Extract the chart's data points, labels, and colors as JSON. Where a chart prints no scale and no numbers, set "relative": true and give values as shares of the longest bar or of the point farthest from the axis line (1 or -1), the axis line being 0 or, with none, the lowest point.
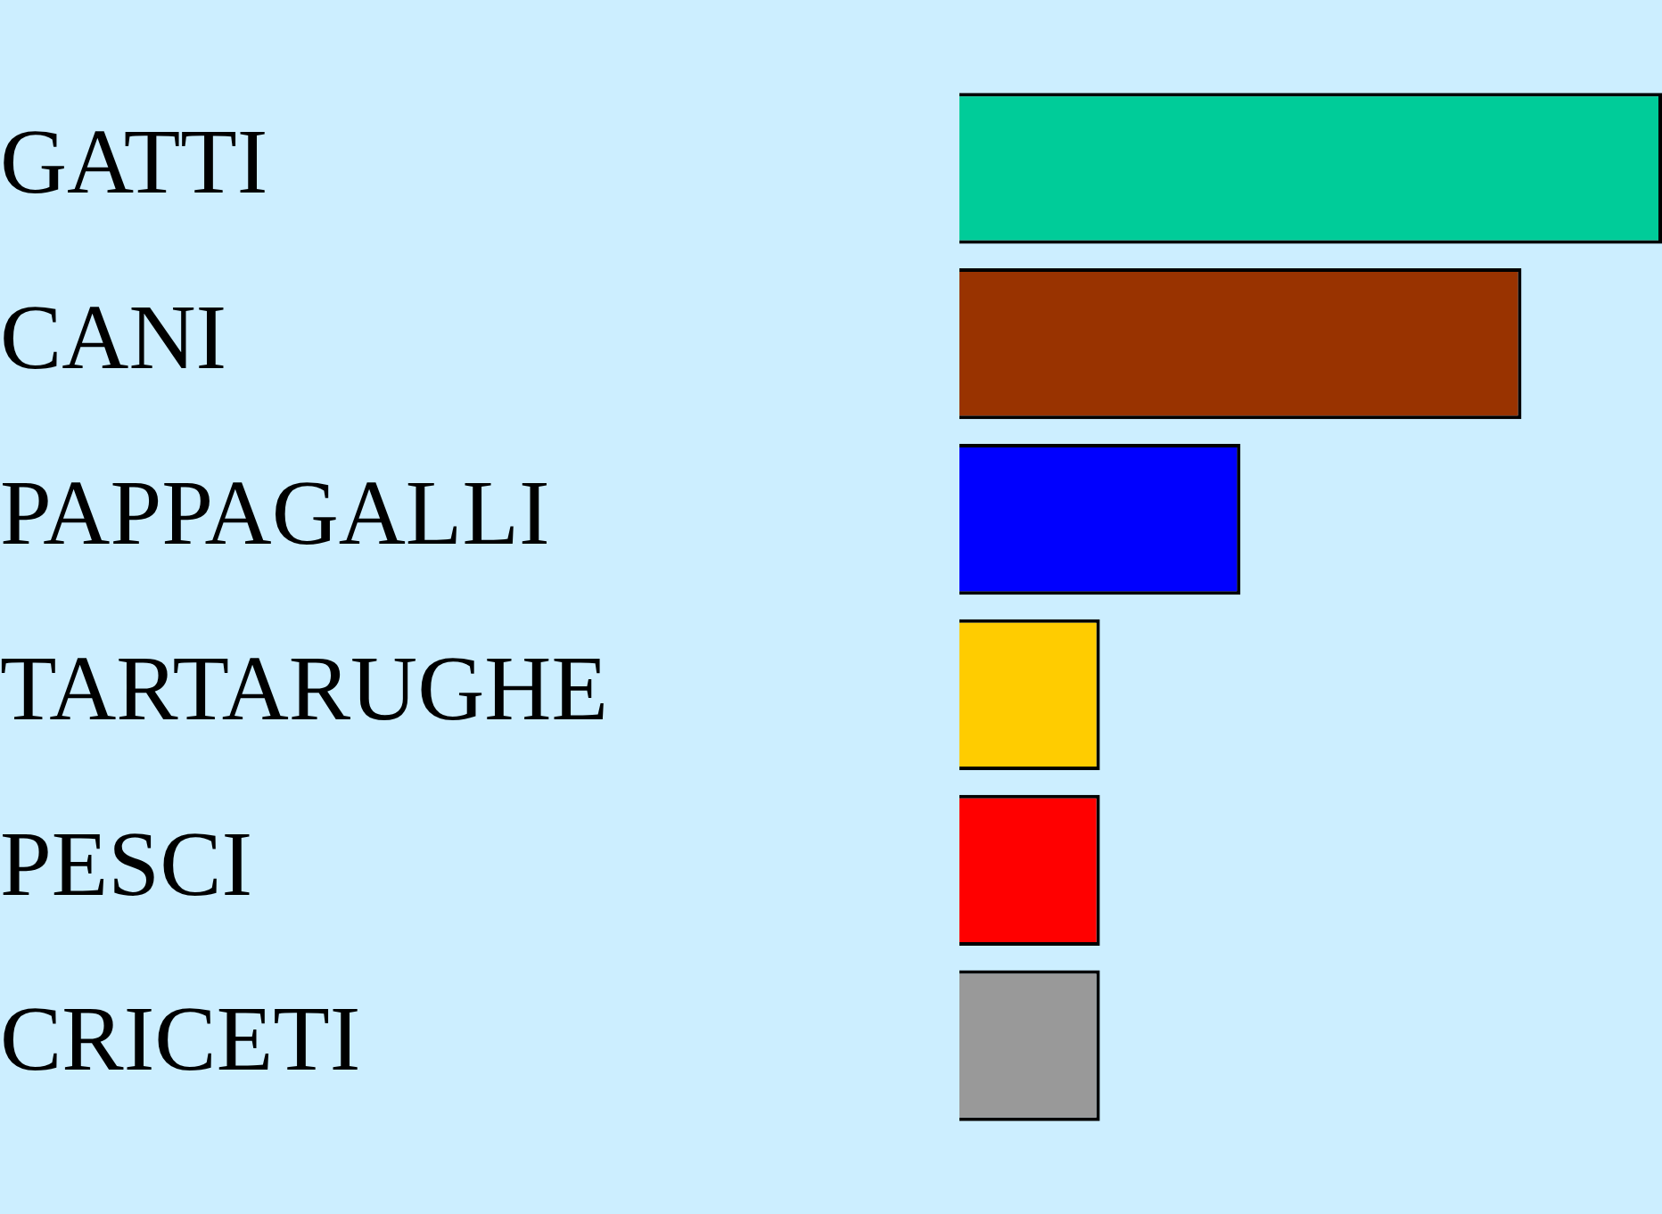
{
  "chart_data": {
    "type": "bar",
    "orientation": "horizontal",
    "relative": true,
    "categories": [
      "GATTI",
      "CANI",
      "PAPPAGALLI",
      "TARTARUGHE",
      "PESCI",
      "CRICETI"
    ],
    "values": [
      1,
      0.8,
      0.4,
      0.2,
      0.2,
      0.2
    ],
    "colors": [
      "#00cc99",
      "#993300",
      "#0000ff",
      "#ffcc00",
      "#ff0000",
      "#999999"
    ],
    "grid": false,
    "legend": false
  }
}
